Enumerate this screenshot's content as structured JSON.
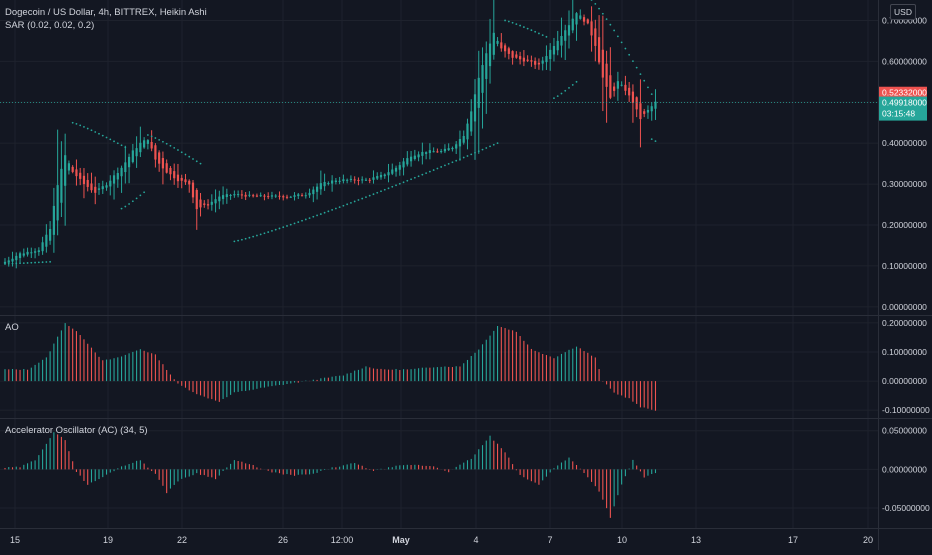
{
  "header": {
    "symbol_title": "Dogecoin / US Dollar, 4h, BITTREX, Heikin Ashi",
    "sar_label": "SAR (0.02, 0.02, 0.2)",
    "currency": "USD"
  },
  "panes": {
    "ao_label": "AO",
    "ac_label": "Accelerator Oscillator (AC) (34, 5)"
  },
  "colors": {
    "background": "#131722",
    "grid": "#1e222d",
    "separator": "#2a2e39",
    "up": "#26a69a",
    "down": "#ef5350",
    "ao_up": "#26a69a",
    "ao_down": "#ef5350",
    "sar": "#26a69a",
    "axis_text": "#d1d4dc"
  },
  "price_labels": {
    "prev_close": "0.52332000",
    "last_price": "0.49918000",
    "countdown": "03:15:48"
  },
  "chart_data": [
    {
      "type": "candlestick",
      "title": "Dogecoin / US Dollar, 4h, BITTREX, Heikin Ashi",
      "x_ticks": [
        "15",
        "19",
        "22",
        "26",
        "12:00",
        "May",
        "4",
        "7",
        "10",
        "13",
        "17",
        "20"
      ],
      "y_ticks": [
        "0.70000000",
        "0.60000000",
        "0.50000000",
        "0.40000000",
        "0.30000000",
        "0.20000000",
        "0.10000000",
        "0.00000000"
      ],
      "ylim": [
        -0.02,
        0.75
      ],
      "price_path": [
        [
          0,
          0.11
        ],
        [
          4,
          0.13
        ],
        [
          9,
          0.14
        ],
        [
          12,
          0.19
        ],
        [
          14,
          0.3
        ],
        [
          16,
          0.37
        ],
        [
          18,
          0.33
        ],
        [
          21,
          0.3
        ],
        [
          24,
          0.28
        ],
        [
          27,
          0.3
        ],
        [
          31,
          0.34
        ],
        [
          34,
          0.38
        ],
        [
          36,
          0.4
        ],
        [
          38,
          0.41
        ],
        [
          40,
          0.36
        ],
        [
          43,
          0.33
        ],
        [
          46,
          0.31
        ],
        [
          49,
          0.3
        ],
        [
          51,
          0.24
        ],
        [
          54,
          0.25
        ],
        [
          57,
          0.27
        ],
        [
          61,
          0.275
        ],
        [
          66,
          0.27
        ],
        [
          71,
          0.27
        ],
        [
          76,
          0.27
        ],
        [
          80,
          0.275
        ],
        [
          84,
          0.3
        ],
        [
          88,
          0.31
        ],
        [
          92,
          0.31
        ],
        [
          96,
          0.31
        ],
        [
          100,
          0.32
        ],
        [
          104,
          0.34
        ],
        [
          108,
          0.37
        ],
        [
          112,
          0.38
        ],
        [
          116,
          0.38
        ],
        [
          119,
          0.39
        ],
        [
          122,
          0.42
        ],
        [
          124,
          0.48
        ],
        [
          126,
          0.56
        ],
        [
          128,
          0.62
        ],
        [
          130,
          0.67
        ],
        [
          132,
          0.63
        ],
        [
          135,
          0.61
        ],
        [
          139,
          0.6
        ],
        [
          142,
          0.59
        ],
        [
          146,
          0.64
        ],
        [
          150,
          0.69
        ],
        [
          152,
          0.72
        ],
        [
          155,
          0.69
        ],
        [
          157,
          0.64
        ],
        [
          159,
          0.56
        ],
        [
          161,
          0.51
        ],
        [
          163,
          0.55
        ],
        [
          165,
          0.53
        ],
        [
          167,
          0.5
        ],
        [
          169,
          0.46
        ],
        [
          171,
          0.48
        ],
        [
          173,
          0.5
        ]
      ],
      "sar_segments": [
        {
          "from": [
            0,
            0.105
          ],
          "to": [
            12,
            0.11
          ]
        },
        {
          "from": [
            18,
            0.45
          ],
          "to": [
            32,
            0.39
          ]
        },
        {
          "from": [
            31,
            0.24
          ],
          "to": [
            37,
            0.28
          ]
        },
        {
          "from": [
            38,
            0.42
          ],
          "to": [
            52,
            0.35
          ]
        },
        {
          "from": [
            61,
            0.16
          ],
          "to": [
            131,
            0.4
          ]
        },
        {
          "from": [
            133,
            0.7
          ],
          "to": [
            144,
            0.66
          ]
        },
        {
          "from": [
            146,
            0.51
          ],
          "to": [
            152,
            0.55
          ]
        },
        {
          "from": [
            156,
            0.75
          ],
          "to": [
            172,
            0.52
          ]
        },
        {
          "from": [
            172,
            0.41
          ],
          "to": [
            173,
            0.405
          ]
        }
      ]
    },
    {
      "type": "histogram",
      "title": "AO",
      "y_ticks": [
        "0.20000000",
        "0.10000000",
        "0.00000000",
        "-0.10000000"
      ],
      "ylim": [
        -0.12,
        0.21
      ],
      "path": [
        [
          0,
          0.04
        ],
        [
          6,
          0.04
        ],
        [
          11,
          0.08
        ],
        [
          16,
          0.2
        ],
        [
          20,
          0.16
        ],
        [
          26,
          0.07
        ],
        [
          30,
          0.08
        ],
        [
          36,
          0.11
        ],
        [
          40,
          0.09
        ],
        [
          46,
          -0.01
        ],
        [
          52,
          -0.05
        ],
        [
          57,
          -0.07
        ],
        [
          61,
          -0.04
        ],
        [
          70,
          -0.02
        ],
        [
          80,
          0.0
        ],
        [
          90,
          0.02
        ],
        [
          96,
          0.05
        ],
        [
          100,
          0.04
        ],
        [
          108,
          0.04
        ],
        [
          115,
          0.05
        ],
        [
          121,
          0.05
        ],
        [
          126,
          0.11
        ],
        [
          131,
          0.19
        ],
        [
          136,
          0.17
        ],
        [
          140,
          0.11
        ],
        [
          146,
          0.08
        ],
        [
          152,
          0.12
        ],
        [
          157,
          0.08
        ],
        [
          159,
          0.0
        ],
        [
          162,
          -0.04
        ],
        [
          166,
          -0.06
        ],
        [
          169,
          -0.09
        ],
        [
          173,
          -0.1
        ]
      ]
    },
    {
      "type": "histogram",
      "title": "Accelerator Oscillator (AC) (34, 5)",
      "y_ticks": [
        "0.05000000",
        "0.00000000",
        "-0.05000000"
      ],
      "ylim": [
        -0.072,
        0.06
      ],
      "path": [
        [
          0,
          0.002
        ],
        [
          4,
          0.003
        ],
        [
          8,
          0.012
        ],
        [
          13,
          0.048
        ],
        [
          16,
          0.038
        ],
        [
          19,
          -0.003
        ],
        [
          22,
          -0.02
        ],
        [
          26,
          -0.01
        ],
        [
          31,
          0.004
        ],
        [
          36,
          0.012
        ],
        [
          40,
          -0.006
        ],
        [
          43,
          -0.03
        ],
        [
          46,
          -0.015
        ],
        [
          51,
          -0.005
        ],
        [
          56,
          -0.012
        ],
        [
          61,
          0.012
        ],
        [
          66,
          0.005
        ],
        [
          71,
          -0.004
        ],
        [
          77,
          -0.008
        ],
        [
          82,
          -0.006
        ],
        [
          87,
          0.002
        ],
        [
          93,
          0.008
        ],
        [
          98,
          -0.002
        ],
        [
          104,
          0.004
        ],
        [
          108,
          0.006
        ],
        [
          114,
          0.004
        ],
        [
          118,
          -0.003
        ],
        [
          124,
          0.014
        ],
        [
          129,
          0.043
        ],
        [
          133,
          0.022
        ],
        [
          137,
          -0.008
        ],
        [
          142,
          -0.02
        ],
        [
          146,
          0.002
        ],
        [
          150,
          0.015
        ],
        [
          154,
          -0.004
        ],
        [
          158,
          -0.028
        ],
        [
          161,
          -0.062
        ],
        [
          164,
          -0.02
        ],
        [
          167,
          0.012
        ],
        [
          170,
          -0.01
        ],
        [
          173,
          -0.005
        ]
      ]
    }
  ]
}
